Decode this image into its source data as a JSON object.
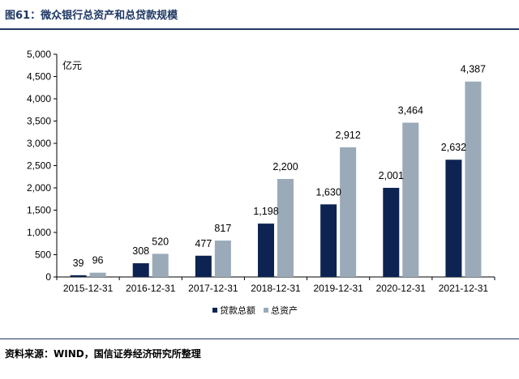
{
  "header": {
    "title": "图61：微众银行总资产和总贷款规模"
  },
  "footer": {
    "source": "资料来源：WIND，国信证券经济研究所整理"
  },
  "chart_data": {
    "type": "bar",
    "unit_label": "亿元",
    "categories": [
      "2015-12-31",
      "2016-12-31",
      "2017-12-31",
      "2018-12-31",
      "2019-12-31",
      "2020-12-31",
      "2021-12-31"
    ],
    "series": [
      {
        "name": "贷款总额",
        "color": "#0d2452",
        "values": [
          39,
          308,
          477,
          1198,
          1630,
          2001,
          2632
        ],
        "labels": [
          "39",
          "308",
          "477",
          "1,198",
          "1,630",
          "2,001",
          "2,632"
        ]
      },
      {
        "name": "总资产",
        "color": "#9aaab8",
        "values": [
          96,
          520,
          817,
          2200,
          2912,
          3464,
          4387
        ],
        "labels": [
          "96",
          "520",
          "817",
          "2,200",
          "2,912",
          "3,464",
          "4,387"
        ]
      }
    ],
    "ylim": [
      0,
      5000
    ],
    "yticks": [
      0,
      500,
      1000,
      1500,
      2000,
      2500,
      3000,
      3500,
      4000,
      4500,
      5000
    ],
    "ytick_labels": [
      "0",
      "500",
      "1,000",
      "1,500",
      "2,000",
      "2,500",
      "3,000",
      "3,500",
      "4,000",
      "4,500",
      "5,000"
    ],
    "legend_position": "bottom-center",
    "grid": false
  }
}
